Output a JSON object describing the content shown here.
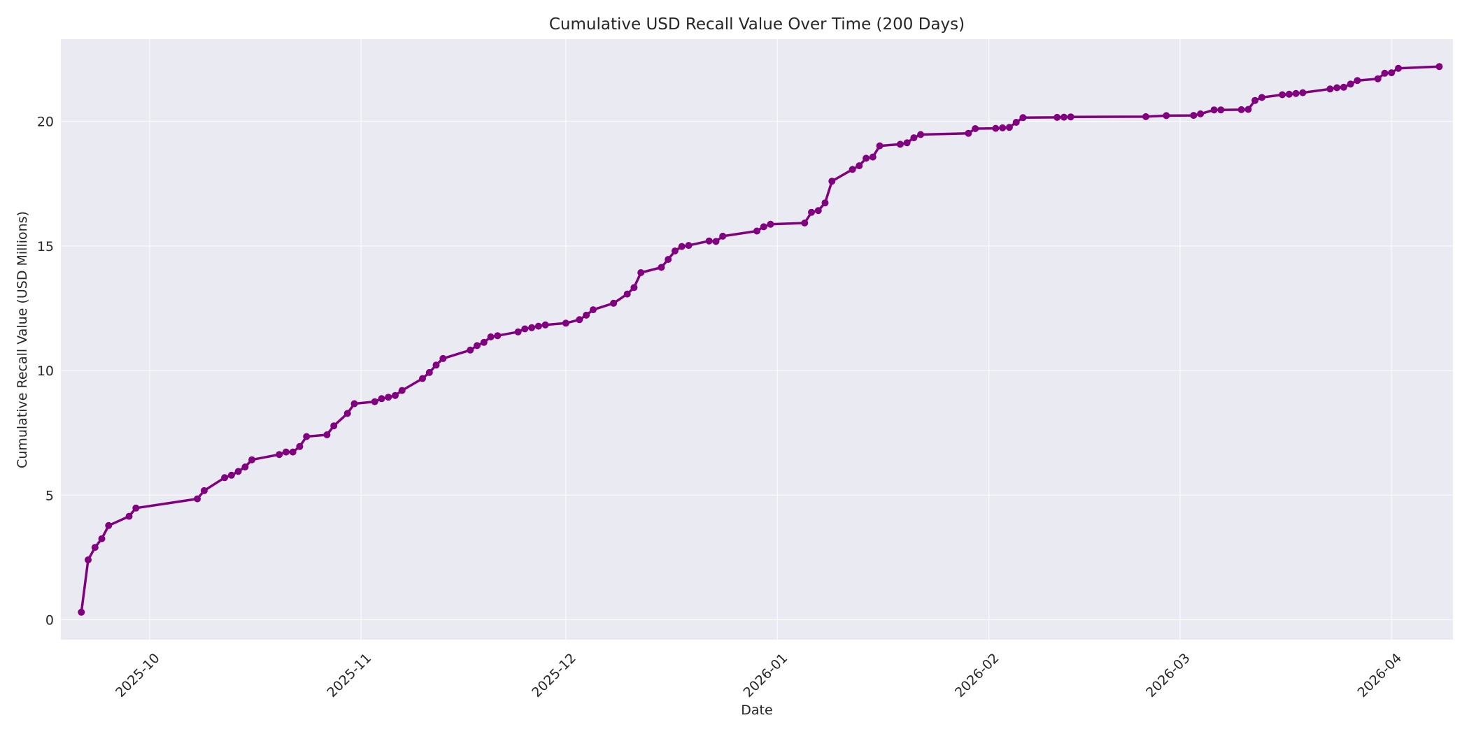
{
  "chart_data": {
    "type": "line",
    "title": "Cumulative USD Recall Value Over Time (200 Days)",
    "xlabel": "Date",
    "ylabel": "Cumulative Recall Value (USD Millions)",
    "xlim": [
      "2025-09-18",
      "2026-04-10"
    ],
    "ylim": [
      -0.8,
      23.3
    ],
    "yticks": [
      0,
      5,
      10,
      15,
      20
    ],
    "xticks": [
      "2025-10",
      "2025-11",
      "2025-12",
      "2026-01",
      "2026-02",
      "2026-03",
      "2026-04"
    ],
    "grid": true,
    "line_color": "#800080",
    "plot_bg": "#eaeaf2",
    "series": [
      {
        "x": [
          "2025-09-21",
          "2025-09-22",
          "2025-09-23",
          "2025-09-24",
          "2025-09-25",
          "2025-09-28",
          "2025-09-29",
          "2025-10-08",
          "2025-10-09",
          "2025-10-12",
          "2025-10-13",
          "2025-10-14",
          "2025-10-15",
          "2025-10-16",
          "2025-10-20",
          "2025-10-21",
          "2025-10-22",
          "2025-10-23",
          "2025-10-24",
          "2025-10-27",
          "2025-10-28",
          "2025-10-30",
          "2025-10-31",
          "2025-11-03",
          "2025-11-04",
          "2025-11-05",
          "2025-11-06",
          "2025-11-07",
          "2025-11-10",
          "2025-11-11",
          "2025-11-12",
          "2025-11-13",
          "2025-11-17",
          "2025-11-18",
          "2025-11-19",
          "2025-11-20",
          "2025-11-21",
          "2025-11-24",
          "2025-11-25",
          "2025-11-26",
          "2025-11-27",
          "2025-11-28",
          "2025-12-01",
          "2025-12-03",
          "2025-12-04",
          "2025-12-05",
          "2025-12-08",
          "2025-12-10",
          "2025-12-11",
          "2025-12-12",
          "2025-12-15",
          "2025-12-16",
          "2025-12-17",
          "2025-12-18",
          "2025-12-19",
          "2025-12-22",
          "2025-12-23",
          "2025-12-24",
          "2025-12-29",
          "2025-12-30",
          "2025-12-31",
          "2026-01-05",
          "2026-01-06",
          "2026-01-07",
          "2026-01-08",
          "2026-01-09",
          "2026-01-12",
          "2026-01-13",
          "2026-01-14",
          "2026-01-15",
          "2026-01-16",
          "2026-01-19",
          "2026-01-20",
          "2026-01-21",
          "2026-01-22",
          "2026-01-29",
          "2026-01-30",
          "2026-02-02",
          "2026-02-03",
          "2026-02-04",
          "2026-02-05",
          "2026-02-06",
          "2026-02-11",
          "2026-02-12",
          "2026-02-13",
          "2026-02-24",
          "2026-02-27",
          "2026-03-03",
          "2026-03-04",
          "2026-03-06",
          "2026-03-07",
          "2026-03-10",
          "2026-03-11",
          "2026-03-12",
          "2026-03-13",
          "2026-03-16",
          "2026-03-17",
          "2026-03-18",
          "2026-03-19",
          "2026-03-23",
          "2026-03-24",
          "2026-03-25",
          "2026-03-26",
          "2026-03-27",
          "2026-03-30",
          "2026-03-31",
          "2026-04-01",
          "2026-04-02",
          "2026-04-08"
        ],
        "y": [
          0.3,
          2.4,
          2.9,
          3.25,
          3.78,
          4.15,
          4.48,
          4.85,
          5.18,
          5.7,
          5.8,
          5.95,
          6.13,
          6.42,
          6.63,
          6.73,
          6.73,
          6.95,
          7.35,
          7.42,
          7.78,
          8.28,
          8.67,
          8.75,
          8.87,
          8.93,
          9.0,
          9.2,
          9.68,
          9.92,
          10.22,
          10.48,
          10.82,
          11.0,
          11.13,
          11.35,
          11.4,
          11.55,
          11.67,
          11.72,
          11.78,
          11.83,
          11.9,
          12.04,
          12.22,
          12.44,
          12.7,
          13.07,
          13.33,
          13.93,
          14.14,
          14.46,
          14.8,
          14.98,
          15.02,
          15.2,
          15.18,
          15.39,
          15.6,
          15.77,
          15.87,
          15.92,
          16.35,
          16.42,
          16.73,
          17.6,
          18.07,
          18.22,
          18.52,
          18.57,
          19.02,
          19.08,
          19.14,
          19.34,
          19.47,
          19.52,
          19.71,
          19.72,
          19.74,
          19.76,
          19.96,
          20.15,
          20.16,
          20.17,
          20.18,
          20.19,
          20.23,
          20.24,
          20.3,
          20.46,
          20.46,
          20.47,
          20.48,
          20.84,
          20.96,
          21.07,
          21.09,
          21.12,
          21.15,
          21.3,
          21.35,
          21.37,
          21.5,
          21.64,
          21.71,
          21.93,
          21.95,
          22.13,
          22.2
        ]
      }
    ]
  }
}
